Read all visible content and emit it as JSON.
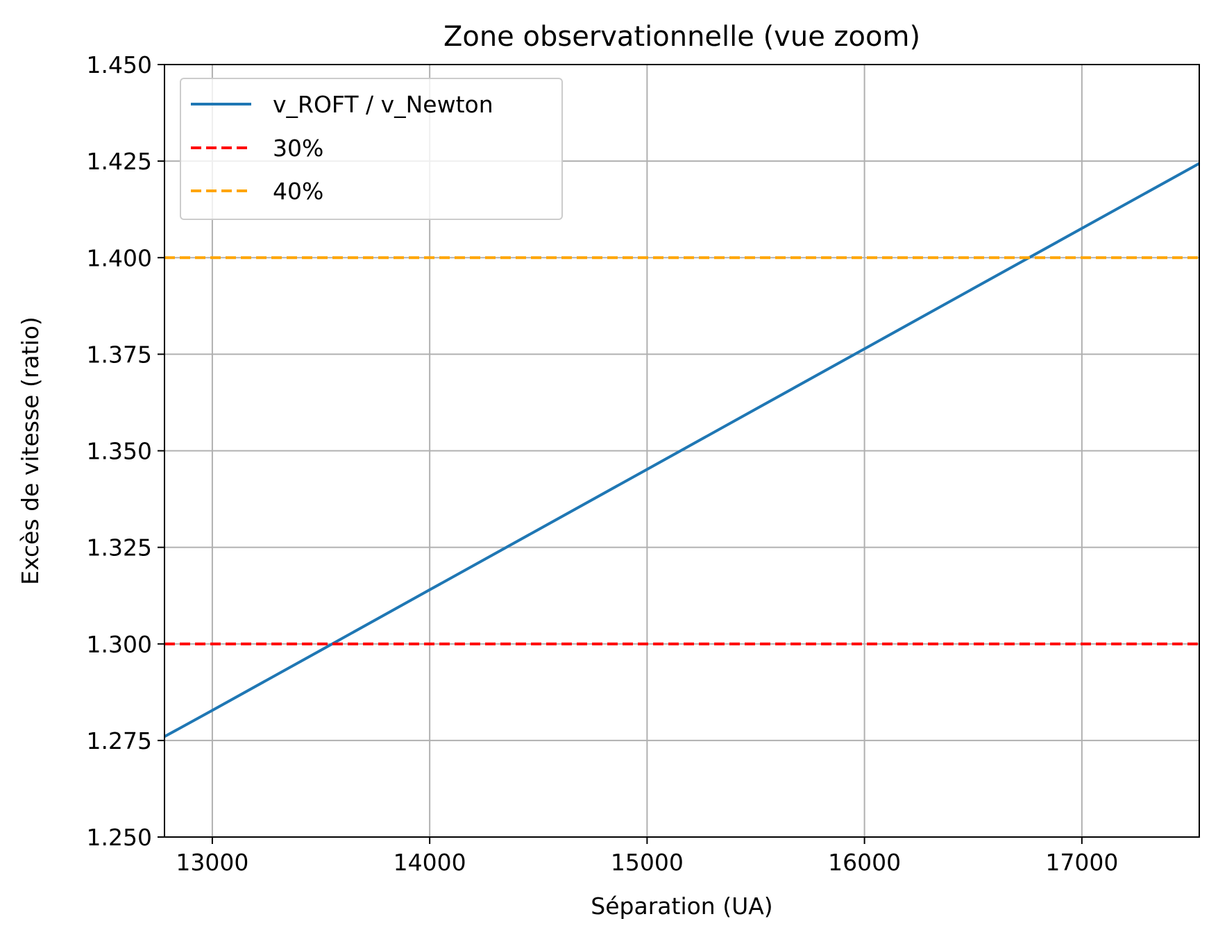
{
  "chart_data": {
    "type": "line",
    "title": "Zone observationnelle (vue zoom)",
    "xlabel": "Séparation (UA)",
    "ylabel": "Excès de vitesse (ratio)",
    "xlim": [
      12780,
      17540
    ],
    "ylim": [
      1.25,
      1.45
    ],
    "xticks": [
      13000,
      14000,
      15000,
      16000,
      17000
    ],
    "xtick_labels": [
      "13000",
      "14000",
      "15000",
      "16000",
      "17000"
    ],
    "yticks": [
      1.25,
      1.275,
      1.3,
      1.325,
      1.35,
      1.375,
      1.4,
      1.425,
      1.45
    ],
    "ytick_labels": [
      "1.250",
      "1.275",
      "1.300",
      "1.325",
      "1.350",
      "1.375",
      "1.400",
      "1.425",
      "1.450"
    ],
    "grid": true,
    "legend_position": "top-left",
    "series": [
      {
        "name": "v_ROFT / v_Newton",
        "kind": "line",
        "color": "#1f77b4",
        "x": [
          12780,
          13000,
          13500,
          14000,
          14500,
          15000,
          15500,
          16000,
          16500,
          17000,
          17540
        ],
        "y": [
          1.276,
          1.2828,
          1.2984,
          1.314,
          1.3296,
          1.3452,
          1.3608,
          1.3764,
          1.392,
          1.4076,
          1.4244
        ]
      },
      {
        "name": "30%",
        "kind": "hline",
        "style": "dashed",
        "color": "#ff0000",
        "y": 1.3
      },
      {
        "name": "40%",
        "kind": "hline",
        "style": "dashed",
        "color": "#ffa500",
        "y": 1.4
      }
    ]
  }
}
